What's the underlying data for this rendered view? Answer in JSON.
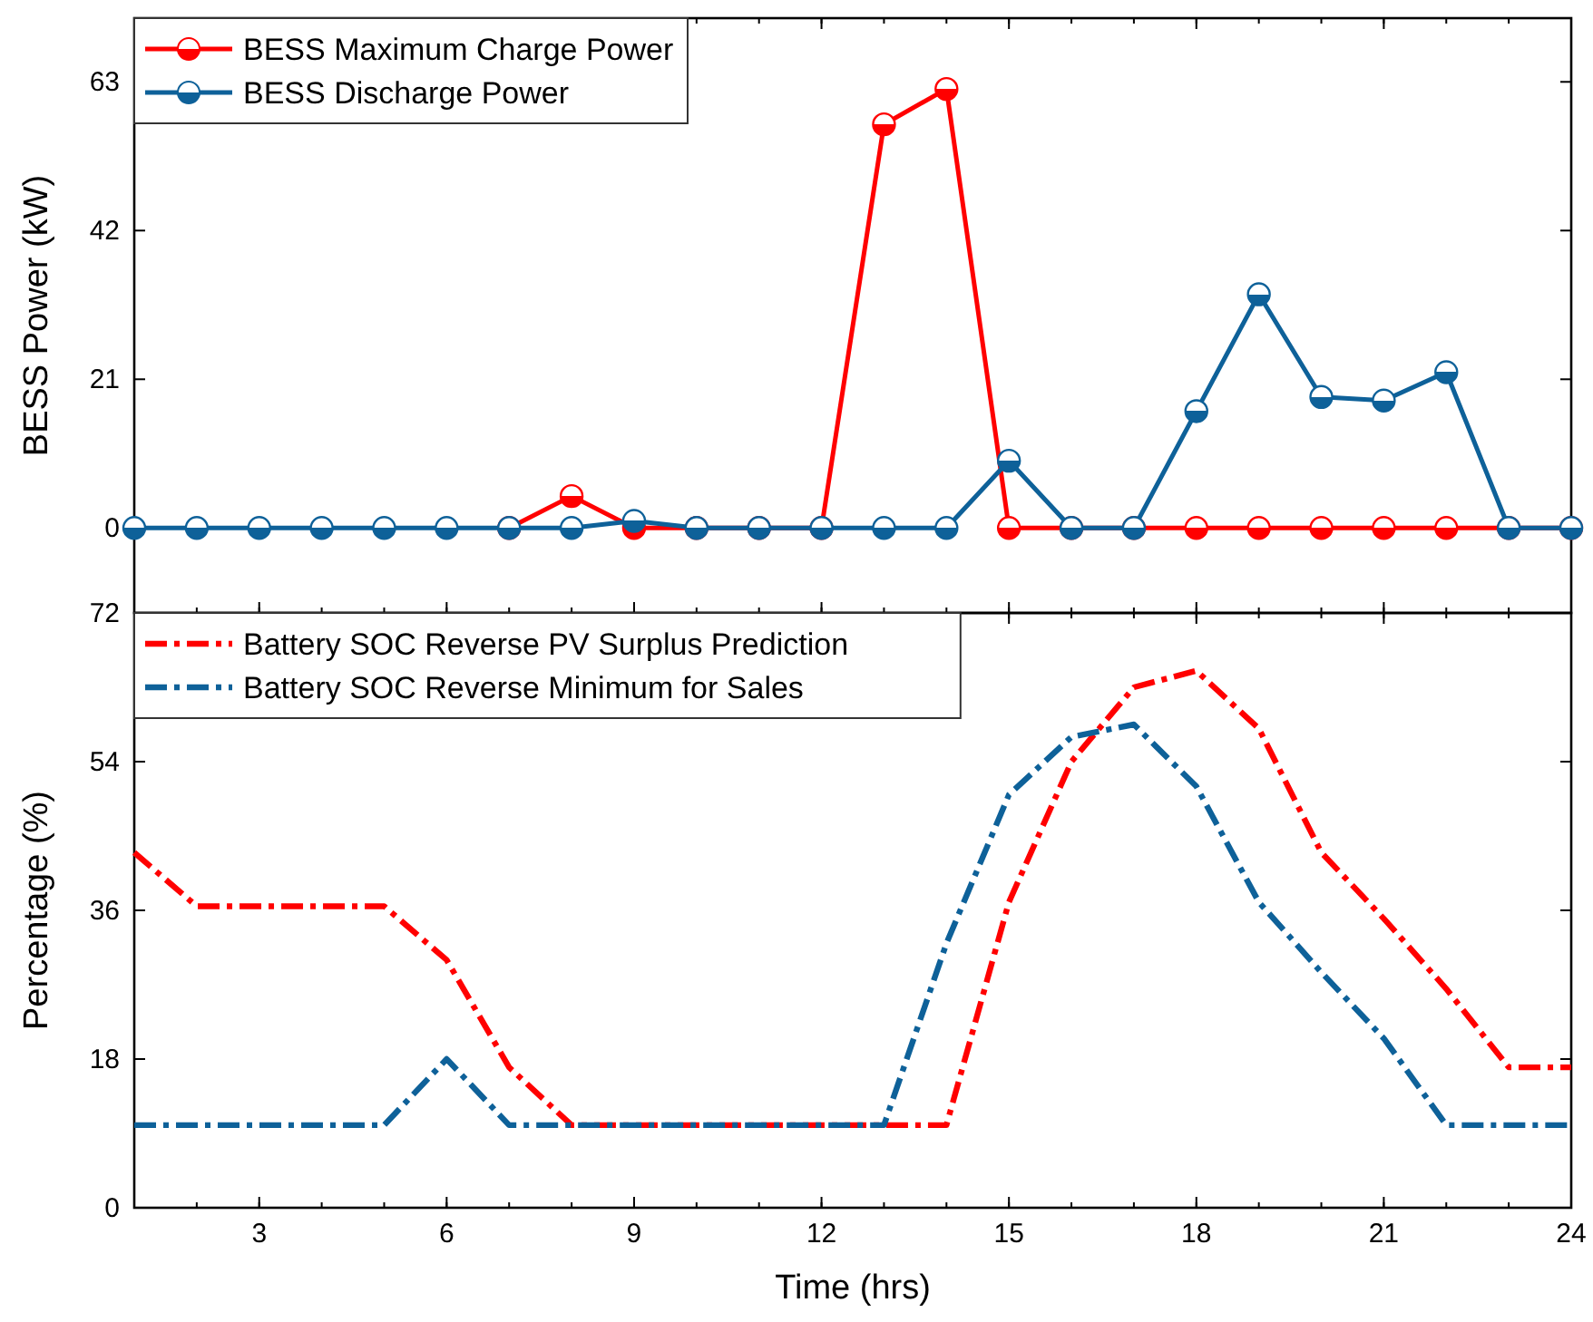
{
  "chart_data": [
    {
      "type": "line",
      "ylabel": "BESS Power (kW)",
      "x": [
        1,
        2,
        3,
        4,
        5,
        6,
        7,
        8,
        9,
        10,
        11,
        12,
        13,
        14,
        15,
        16,
        17,
        18,
        19,
        20,
        21,
        22,
        23,
        24
      ],
      "xlim": [
        1,
        24
      ],
      "xticks": [
        {
          "value": 3,
          "label": null
        },
        {
          "value": 6,
          "label": null
        },
        {
          "value": 9,
          "label": null
        },
        {
          "value": 12,
          "label": null
        },
        {
          "value": 15,
          "label": null
        },
        {
          "value": 18,
          "label": null
        },
        {
          "value": 21,
          "label": null
        },
        {
          "value": 24,
          "label": null
        }
      ],
      "ylim": [
        -12,
        72
      ],
      "yticks": [
        0,
        21,
        42,
        63
      ],
      "tick_labels": "y",
      "legend": "top left",
      "marker": "circle",
      "line_style": "solid",
      "grid": false,
      "series": [
        {
          "name": "BESS Maximum Charge Power",
          "color": "#ff0000",
          "values": [
            null,
            null,
            null,
            null,
            null,
            null,
            0,
            4.5,
            0,
            0,
            0,
            0,
            57,
            62,
            0,
            0,
            0,
            0,
            0,
            0,
            0,
            0,
            0,
            0
          ]
        },
        {
          "name": "BESS Discharge Power",
          "color": "#0e6199",
          "values": [
            0,
            0,
            0,
            0,
            0,
            0,
            0,
            0,
            1,
            0,
            0,
            0,
            0,
            0,
            9.5,
            0,
            0,
            16.5,
            33,
            18.5,
            18,
            22,
            0,
            0
          ]
        }
      ]
    },
    {
      "type": "line",
      "xlabel": "Time (hrs)",
      "ylabel": "Percentage (%)",
      "x": [
        1,
        2,
        3,
        4,
        5,
        6,
        7,
        8,
        9,
        10,
        11,
        12,
        13,
        14,
        15,
        16,
        17,
        18,
        19,
        20,
        21,
        22,
        23,
        24
      ],
      "xlim": [
        1,
        24
      ],
      "xticks": [
        3,
        6,
        9,
        12,
        15,
        18,
        21,
        24
      ],
      "ylim": [
        0,
        72
      ],
      "yticks": [
        0,
        18,
        36,
        54,
        72
      ],
      "legend": "top left",
      "marker": "none",
      "line_style": "dashed",
      "grid": false,
      "series": [
        {
          "name": "Battery SOC Reverse PV Surplus Prediction",
          "color": "#ff0000",
          "values": [
            43,
            36.5,
            36.5,
            36.5,
            36.5,
            30,
            17,
            10,
            10,
            10,
            10,
            10,
            10,
            10,
            37,
            54,
            63,
            65,
            58,
            43,
            35,
            26.5,
            17,
            17
          ]
        },
        {
          "name": "Battery SOC Reverse Minimum for Sales",
          "color": "#0e6199",
          "values": [
            10,
            10,
            10,
            10,
            10,
            18,
            10,
            10,
            10,
            10,
            10,
            10,
            10,
            32,
            50,
            57,
            58.5,
            51,
            37,
            28.5,
            20.5,
            10,
            10,
            10
          ]
        }
      ]
    }
  ]
}
